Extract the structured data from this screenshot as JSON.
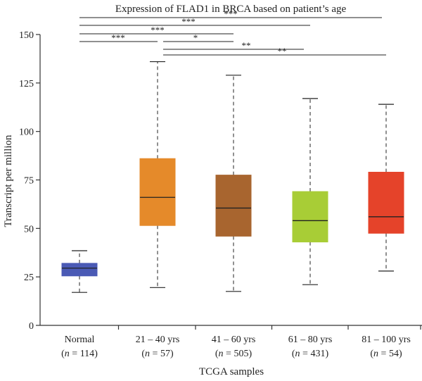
{
  "chart_data": {
    "type": "box",
    "title": "Expression of FLAD1 in BRCA based on patient’s age",
    "xlabel": "TCGA samples",
    "ylabel": "Transcript per million",
    "ylim": [
      0,
      150
    ],
    "yticks": [
      0,
      25,
      50,
      75,
      100,
      125,
      150
    ],
    "grid": false,
    "legend": "none",
    "categories": [
      {
        "name": "Normal",
        "n_label": "n",
        "n_value": "= 114",
        "color": "#4a5ab5",
        "whisker_low": 17,
        "q1": 25.5,
        "median": 29.5,
        "q3": 32,
        "whisker_high": 38.5
      },
      {
        "name": "21 – 40 yrs",
        "n_label": "n",
        "n_value": "= 57",
        "color": "#e58a2a",
        "whisker_low": 19.5,
        "q1": 51.5,
        "median": 66,
        "q3": 86,
        "whisker_high": 136
      },
      {
        "name": "41 – 60 yrs",
        "n_label": "n",
        "n_value": "= 505",
        "color": "#a8652f",
        "whisker_low": 17.5,
        "q1": 46,
        "median": 60.5,
        "q3": 77.5,
        "whisker_high": 129
      },
      {
        "name": "61 – 80 yrs",
        "n_label": "n",
        "n_value": "= 431",
        "color": "#a8cd36",
        "whisker_low": 21,
        "q1": 43,
        "median": 54,
        "q3": 69,
        "whisker_high": 117
      },
      {
        "name": "81 – 100 yrs",
        "n_label": "n",
        "n_value": "= 54",
        "color": "#e5432a",
        "whisker_low": 28,
        "q1": 47.5,
        "median": 56,
        "q3": 79,
        "whisker_high": 114
      }
    ],
    "significance": [
      {
        "from": 0,
        "to": 4,
        "label": "***"
      },
      {
        "from": 0,
        "to": 3,
        "label": "***"
      },
      {
        "from": 0,
        "to": 2,
        "label": "***"
      },
      {
        "from": 0,
        "to": 1,
        "label": "***"
      },
      {
        "from": 1,
        "to": 2,
        "label": "*"
      },
      {
        "from": 1,
        "to": 3,
        "label": "**"
      },
      {
        "from": 1,
        "to": 4,
        "label": "**"
      }
    ]
  }
}
